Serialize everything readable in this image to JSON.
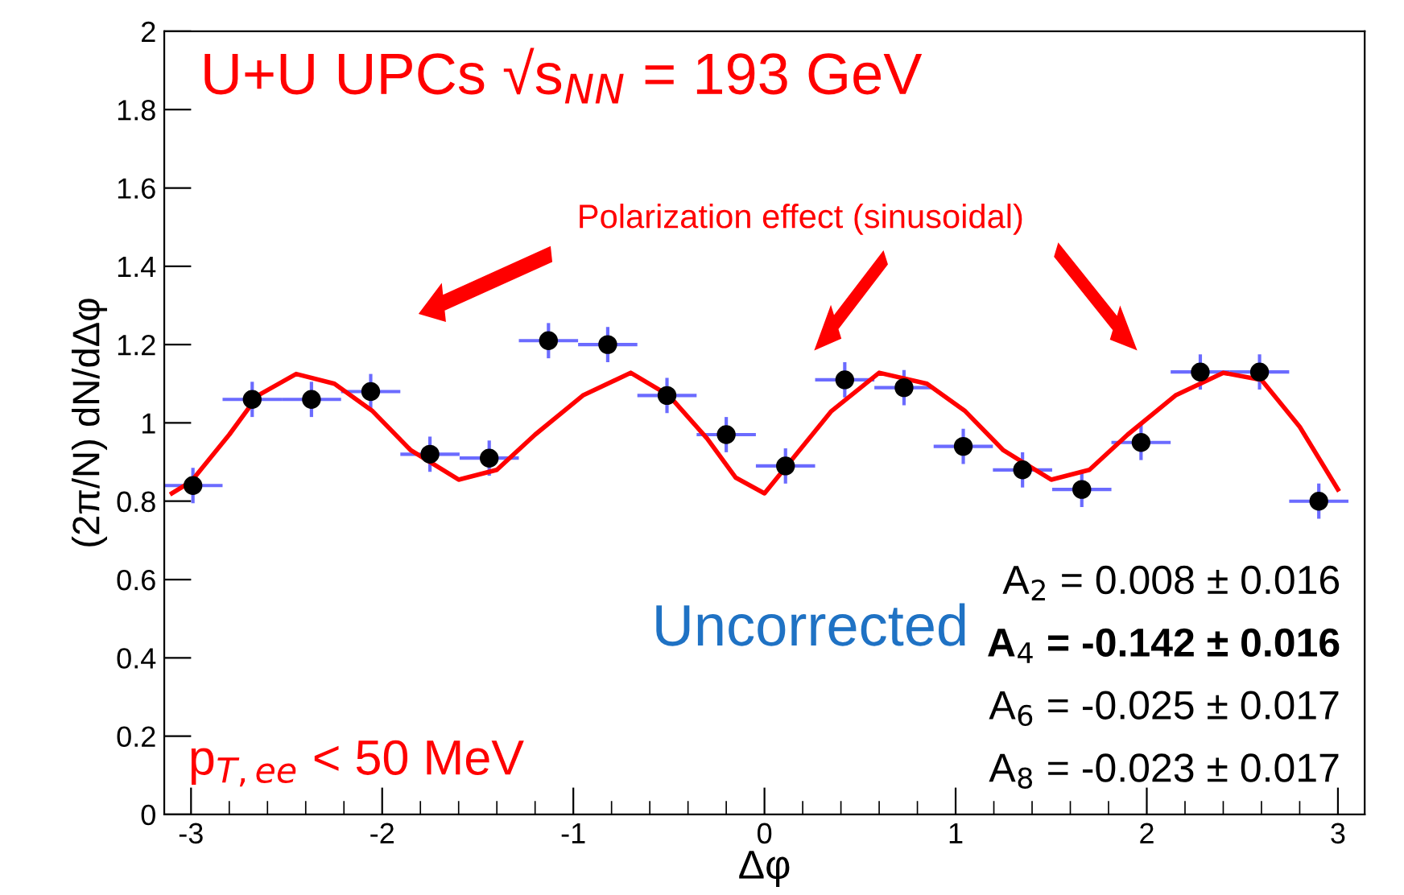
{
  "chart_data": {
    "type": "scatter",
    "title": "U+U UPCs √s$_{NN}$ = 193 GeV",
    "xlabel": "Δφ",
    "ylabel": "(2π/N) dN/dΔφ",
    "xlim": [
      -3.14,
      3.14
    ],
    "ylim": [
      0,
      2
    ],
    "xticks": [
      -3,
      -2,
      -1,
      0,
      1,
      2,
      3
    ],
    "yticks": [
      0,
      0.2,
      0.4,
      0.6,
      0.8,
      1,
      1.2,
      1.4,
      1.6,
      1.8,
      2
    ],
    "grid": false,
    "legend": false,
    "annotations": [
      "Polarization effect (sinusoidal)",
      "Uncorrected",
      "p$_{T,ee}$ < 50 MeV",
      "A$_{2}$ = 0.008 ± 0.016",
      "A$_{4}$ = -0.142 ± 0.016",
      "A$_{6}$ = -0.025 ± 0.017",
      "A$_{8}$ = -0.023 ± 0.017"
    ],
    "series": [
      {
        "type": "scatter",
        "color": "#000000",
        "marker": "circle",
        "x": [
          -2.99,
          -2.68,
          -2.37,
          -2.06,
          -1.75,
          -1.44,
          -1.13,
          -0.82,
          -0.51,
          -0.2,
          0.11,
          0.42,
          0.73,
          1.04,
          1.35,
          1.66,
          1.97,
          2.28,
          2.59,
          2.9
        ],
        "values": [
          0.84,
          1.06,
          1.06,
          1.08,
          0.92,
          0.91,
          1.21,
          1.2,
          1.07,
          0.97,
          0.89,
          1.11,
          1.09,
          0.94,
          0.88,
          0.83,
          0.95,
          1.13,
          1.13,
          0.8
        ],
        "errors": [
          0.045,
          0.045,
          0.045,
          0.045,
          0.045,
          0.045,
          0.045,
          0.045,
          0.045,
          0.045,
          0.045,
          0.045,
          0.045,
          0.045,
          0.045,
          0.045,
          0.045,
          0.045,
          0.045,
          0.045
        ],
        "xerrors": [
          0.155,
          0.155,
          0.155,
          0.155,
          0.155,
          0.155,
          0.155,
          0.155,
          0.155,
          0.155,
          0.155,
          0.155,
          0.155,
          0.155,
          0.155,
          0.155,
          0.155,
          0.155,
          0.155,
          0.155
        ]
      },
      {
        "type": "line",
        "color": "#ff0000",
        "marker": "none",
        "line_style": "solid",
        "x": [
          -3.1,
          -3.0,
          -2.8,
          -2.65,
          -2.45,
          -2.25,
          -2.05,
          -1.85,
          -1.6,
          -1.4,
          -1.2,
          -0.95,
          -0.7,
          -0.5,
          -0.3,
          -0.15,
          0.0,
          0.1,
          0.35,
          0.6,
          0.85,
          1.05,
          1.25,
          1.5,
          1.7,
          1.9,
          2.15,
          2.4,
          2.6,
          2.8,
          3.0
        ],
        "values": [
          0.82,
          0.85,
          0.97,
          1.07,
          1.125,
          1.1,
          1.03,
          0.93,
          0.855,
          0.88,
          0.97,
          1.07,
          1.128,
          1.07,
          0.96,
          0.86,
          0.82,
          0.88,
          1.03,
          1.128,
          1.1,
          1.03,
          0.93,
          0.855,
          0.88,
          0.97,
          1.07,
          1.128,
          1.11,
          0.99,
          0.83
        ]
      }
    ]
  }
}
